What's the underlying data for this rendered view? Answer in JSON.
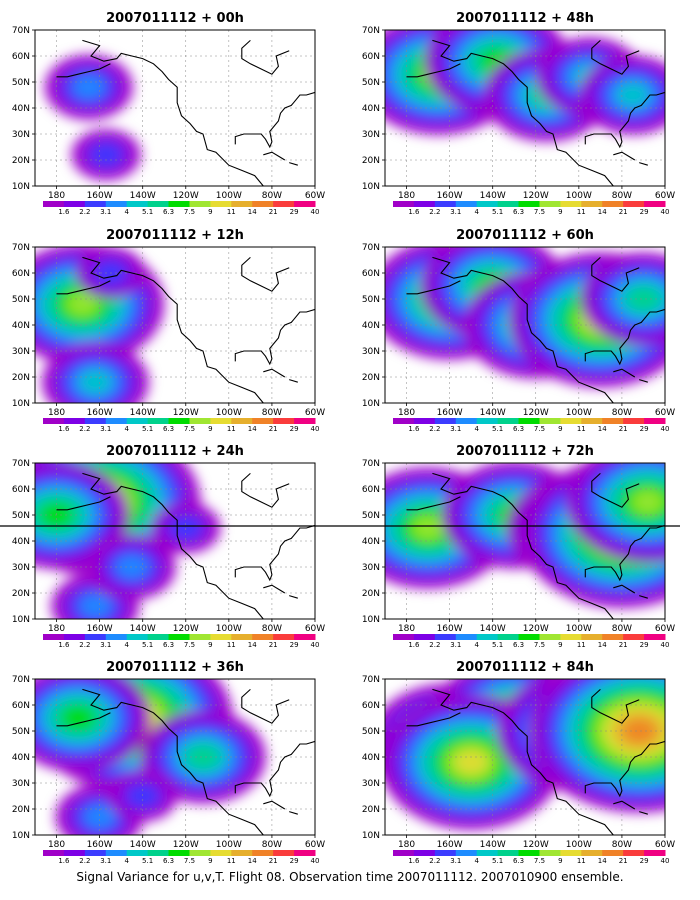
{
  "caption": "Signal Variance for u,v,T. Flight 08. Observation time 2007011112. 2007010900 ensemble.",
  "chart_data": {
    "type": "heatmap",
    "map": {
      "lon_range": [
        -190,
        -60
      ],
      "lat_range": [
        10,
        70
      ],
      "x_ticks": [
        {
          "lon": -180,
          "label": "180"
        },
        {
          "lon": -160,
          "label": "160W"
        },
        {
          "lon": -140,
          "label": "140W"
        },
        {
          "lon": -120,
          "label": "120W"
        },
        {
          "lon": -100,
          "label": "100W"
        },
        {
          "lon": -80,
          "label": "80W"
        },
        {
          "lon": -60,
          "label": "60W"
        }
      ],
      "y_ticks": [
        {
          "lat": 10,
          "label": "10N"
        },
        {
          "lat": 20,
          "label": "20N"
        },
        {
          "lat": 30,
          "label": "30N"
        },
        {
          "lat": 40,
          "label": "40N"
        },
        {
          "lat": 50,
          "label": "50N"
        },
        {
          "lat": 60,
          "label": "60N"
        },
        {
          "lat": 70,
          "label": "70N"
        }
      ],
      "grid": true
    },
    "colorbar": {
      "labels": [
        "1.6",
        "2.2",
        "3.1",
        "4",
        "5.1",
        "6.3",
        "7.5",
        "9",
        "11",
        "14",
        "21",
        "29",
        "40"
      ],
      "colors": [
        "#a000c8",
        "#7d00e6",
        "#3c3cff",
        "#1e8cff",
        "#00c8c8",
        "#00d28c",
        "#00dc00",
        "#a0e632",
        "#e6dc32",
        "#e6af2d",
        "#f08228",
        "#fa3c3c",
        "#f00082"
      ]
    },
    "panels": [
      {
        "title": "2007011112 + 00h",
        "column": 0,
        "row": 0
      },
      {
        "title": "2007011112 + 12h",
        "column": 0,
        "row": 1
      },
      {
        "title": "2007011112 + 24h",
        "column": 0,
        "row": 2
      },
      {
        "title": "2007011112 + 36h",
        "column": 0,
        "row": 3
      },
      {
        "title": "2007011112 + 48h",
        "column": 1,
        "row": 0
      },
      {
        "title": "2007011112 + 60h",
        "column": 1,
        "row": 1
      },
      {
        "title": "2007011112 + 72h",
        "column": 1,
        "row": 2
      },
      {
        "title": "2007011112 + 84h",
        "column": 1,
        "row": 3
      }
    ],
    "hotspots": [
      [
        {
          "lon": -165,
          "lat": 48,
          "level": 3
        },
        {
          "lon": -157,
          "lat": 22,
          "level": 2
        }
      ],
      [
        {
          "lon": -168,
          "lat": 48,
          "level": 7
        },
        {
          "lon": -162,
          "lat": 18,
          "level": 4
        },
        {
          "lon": -155,
          "lat": 60,
          "level": 2
        }
      ],
      [
        {
          "lon": -160,
          "lat": 55,
          "level": 9
        },
        {
          "lon": -180,
          "lat": 50,
          "level": 6
        },
        {
          "lon": -162,
          "lat": 15,
          "level": 3
        },
        {
          "lon": -145,
          "lat": 30,
          "level": 3
        },
        {
          "lon": -120,
          "lat": 45,
          "level": 2
        }
      ],
      [
        {
          "lon": -145,
          "lat": 55,
          "level": 9
        },
        {
          "lon": -170,
          "lat": 55,
          "level": 6
        },
        {
          "lon": -112,
          "lat": 40,
          "level": 5
        },
        {
          "lon": -160,
          "lat": 17,
          "level": 3
        },
        {
          "lon": -140,
          "lat": 25,
          "level": 2
        }
      ],
      [
        {
          "lon": -165,
          "lat": 53,
          "level": 7
        },
        {
          "lon": -138,
          "lat": 58,
          "level": 6
        },
        {
          "lon": -115,
          "lat": 45,
          "level": 5
        },
        {
          "lon": -95,
          "lat": 52,
          "level": 4
        },
        {
          "lon": -75,
          "lat": 45,
          "level": 4
        }
      ],
      [
        {
          "lon": -160,
          "lat": 50,
          "level": 7
        },
        {
          "lon": -140,
          "lat": 55,
          "level": 6
        },
        {
          "lon": -120,
          "lat": 40,
          "level": 6
        },
        {
          "lon": -90,
          "lat": 42,
          "level": 8
        },
        {
          "lon": -70,
          "lat": 50,
          "level": 5
        }
      ],
      [
        {
          "lon": -170,
          "lat": 45,
          "level": 7
        },
        {
          "lon": -130,
          "lat": 50,
          "level": 6
        },
        {
          "lon": -100,
          "lat": 45,
          "level": 6
        },
        {
          "lon": -80,
          "lat": 43,
          "level": 9
        },
        {
          "lon": -68,
          "lat": 55,
          "level": 7
        }
      ],
      [
        {
          "lon": -160,
          "lat": 45,
          "level": 7
        },
        {
          "lon": -130,
          "lat": 55,
          "level": 7
        },
        {
          "lon": -150,
          "lat": 38,
          "level": 8
        },
        {
          "lon": -100,
          "lat": 50,
          "level": 7
        },
        {
          "lon": -72,
          "lat": 50,
          "level": 10
        }
      ]
    ]
  }
}
